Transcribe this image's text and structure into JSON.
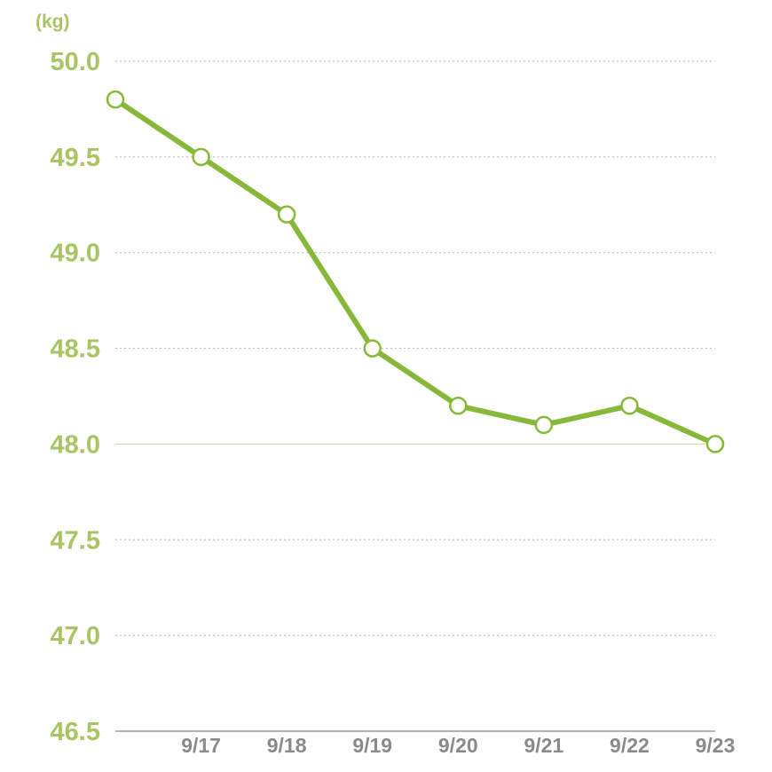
{
  "chart_data": {
    "type": "line",
    "title": "",
    "xlabel": "",
    "ylabel": "(kg)",
    "ylim": [
      46.5,
      50.0
    ],
    "grid": true,
    "legend": "none",
    "y_ticks": [
      "50.0",
      "49.5",
      "49.0",
      "48.5",
      "48.0",
      "47.5",
      "47.0",
      "46.5"
    ],
    "categories": [
      "",
      "9/17",
      "9/18",
      "9/19",
      "9/20",
      "9/21",
      "9/22",
      "9/23"
    ],
    "series": [
      {
        "values": [
          49.8,
          49.5,
          49.2,
          48.5,
          48.2,
          48.1,
          48.2,
          48.0
        ]
      }
    ],
    "reference_line": 48.0,
    "colors": {
      "line": "#87b83a",
      "marker_fill": "#ffffff",
      "y_tick_text": "#a9c463",
      "x_tick_text": "#8a8a8a",
      "grid": "#b5b5b5",
      "reference": "#e8c89a",
      "axis": "#9a9a9a"
    }
  }
}
